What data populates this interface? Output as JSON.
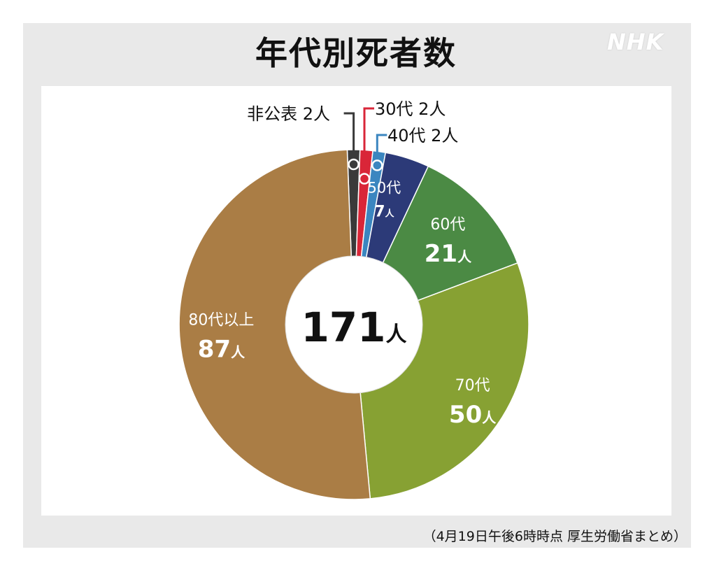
{
  "header": {
    "title": "年代別死者数",
    "logo": "NHK"
  },
  "center": {
    "total_value": "171",
    "total_unit": "人"
  },
  "footnote": "（4月19日午後6時時点 厚生労働省まとめ）",
  "chart_data": {
    "type": "pie",
    "title": "年代別死者数",
    "total": 171,
    "unit": "人",
    "slices": [
      {
        "label": "非公表",
        "value": 2,
        "value_label": "2人",
        "color": "#3a3a3a"
      },
      {
        "label": "30代",
        "value": 2,
        "value_label": "2人",
        "color": "#d92638"
      },
      {
        "label": "40代",
        "value": 2,
        "value_label": "2人",
        "color": "#3b86c0"
      },
      {
        "label": "50代",
        "value": 7,
        "value_label": "7人",
        "color": "#2c3a78"
      },
      {
        "label": "60代",
        "value": 21,
        "value_label": "21人",
        "color": "#4b8a44"
      },
      {
        "label": "70代",
        "value": 50,
        "value_label": "50人",
        "color": "#87a133"
      },
      {
        "label": "80代以上",
        "value": 87,
        "value_label": "87人",
        "color": "#aa7d45"
      }
    ]
  }
}
